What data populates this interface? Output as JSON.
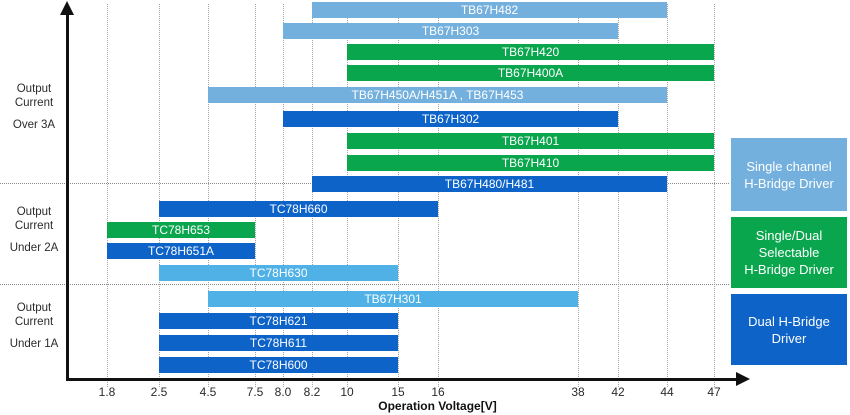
{
  "chart_data": {
    "type": "bar",
    "subtype": "horizontal_range",
    "title": "",
    "xlabel": "Operation Voltage[V]",
    "x_tick_labels": [
      "1.8",
      "2.5",
      "4.5",
      "7.5",
      "8.0",
      "8.2",
      "10",
      "15",
      "16",
      "38",
      "42",
      "44",
      "47"
    ],
    "grid": "dotted-vertical",
    "legend_position": "right",
    "colors": {
      "single": "#74b0dd",
      "single_bright": "#4fb1e6",
      "selectable": "#0aa64e",
      "dual": "#0d63c8",
      "axis": "#111111",
      "grid": "#a3a3a3",
      "separator": "#8a8a8a",
      "tick_text": "#2b2b2b",
      "bar_text": "#ffffff"
    },
    "groups": [
      {
        "id": "over-3a",
        "label_lines": [
          "Output",
          "Current"
        ],
        "sub_label": "Over 3A",
        "bars": [
          {
            "name": "TB67H482",
            "start": "8.2",
            "end": "44",
            "color_key": "single"
          },
          {
            "name": "TB67H303",
            "start": "8.0",
            "end": "42",
            "color_key": "single"
          },
          {
            "name": "TB67H420",
            "start": "10",
            "end": "47",
            "color_key": "selectable"
          },
          {
            "name": "TB67H400A",
            "start": "10",
            "end": "47",
            "color_key": "selectable"
          },
          {
            "name": "TB67H450A/H451A , TB67H453",
            "start": "4.5",
            "end": "44",
            "color_key": "single"
          },
          {
            "name": "TB67H302",
            "start": "8.0",
            "end": "42",
            "color_key": "dual"
          },
          {
            "name": "TB67H401",
            "start": "10",
            "end": "47",
            "color_key": "selectable"
          },
          {
            "name": "TB67H410",
            "start": "10",
            "end": "47",
            "color_key": "selectable"
          },
          {
            "name": "TB67H480/H481",
            "start": "8.2",
            "end": "44",
            "color_key": "dual"
          }
        ]
      },
      {
        "id": "under-2a",
        "label_lines": [
          "Output",
          "Current"
        ],
        "sub_label": "Under 2A",
        "bars": [
          {
            "name": "TC78H660",
            "start": "2.5",
            "end": "16",
            "color_key": "dual"
          },
          {
            "name": "TC78H653",
            "start": "1.8",
            "end": "7.5",
            "color_key": "selectable"
          },
          {
            "name": "TC78H651A",
            "start": "1.8",
            "end": "7.5",
            "color_key": "dual"
          },
          {
            "name": "TC78H630",
            "start": "2.5",
            "end": "15",
            "color_key": "single_bright"
          }
        ]
      },
      {
        "id": "under-1a",
        "label_lines": [
          "Output",
          "Current"
        ],
        "sub_label": "Under 1A",
        "bars": [
          {
            "name": "TB67H301",
            "start": "4.5",
            "end": "38",
            "color_key": "single_bright"
          },
          {
            "name": "TC78H621",
            "start": "2.5",
            "end": "15",
            "color_key": "dual"
          },
          {
            "name": "TC78H611",
            "start": "2.5",
            "end": "15",
            "color_key": "dual"
          },
          {
            "name": "TC78H600",
            "start": "2.5",
            "end": "15",
            "color_key": "dual"
          }
        ]
      }
    ],
    "legend": {
      "items": [
        {
          "lines": [
            "Single channel",
            "H-Bridge Driver"
          ],
          "color_key": "single"
        },
        {
          "lines": [
            "Single/Dual",
            "Selectable",
            "H-Bridge Driver"
          ],
          "color_key": "selectable"
        },
        {
          "lines": [
            "Dual H-Bridge",
            "Driver"
          ],
          "color_key": "dual"
        }
      ]
    }
  }
}
